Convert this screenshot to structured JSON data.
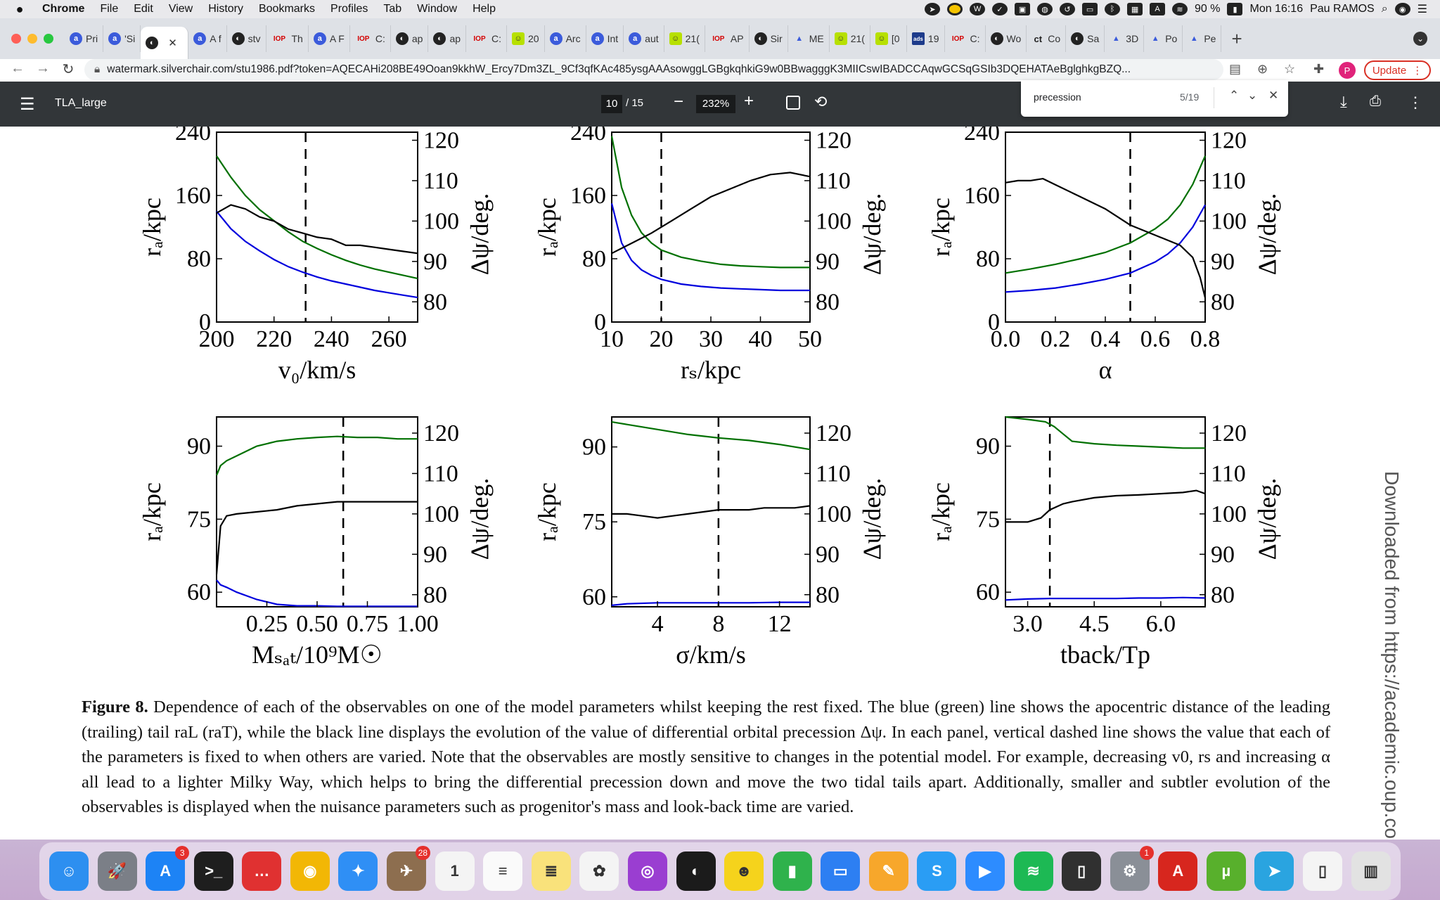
{
  "menubar": {
    "app": "Chrome",
    "items": [
      "File",
      "Edit",
      "View",
      "History",
      "Bookmarks",
      "Profiles",
      "Tab",
      "Window",
      "Help"
    ],
    "battery": "90 %",
    "clock": "Mon 16:16",
    "user": "Pau RAMOS"
  },
  "tabs": [
    {
      "label": "Pri",
      "icon": "a"
    },
    {
      "label": "'Si",
      "icon": "a"
    },
    {
      "label": "",
      "icon": "gh",
      "active": true
    },
    {
      "label": "A f",
      "icon": "a"
    },
    {
      "label": "stv",
      "icon": "gh"
    },
    {
      "label": "Th",
      "icon": "iop"
    },
    {
      "label": "A F",
      "icon": "a"
    },
    {
      "label": "C:",
      "icon": "iop"
    },
    {
      "label": "ap",
      "icon": "gh"
    },
    {
      "label": "ap",
      "icon": "gh"
    },
    {
      "label": "C:",
      "icon": "iop"
    },
    {
      "label": "20",
      "icon": "smile"
    },
    {
      "label": "Arc",
      "icon": "a"
    },
    {
      "label": "Int",
      "icon": "a"
    },
    {
      "label": "aut",
      "icon": "a"
    },
    {
      "label": "21(",
      "icon": "smile"
    },
    {
      "label": "AP",
      "icon": "iop"
    },
    {
      "label": "Sir",
      "icon": "gh"
    },
    {
      "label": "ME",
      "icon": "tri"
    },
    {
      "label": "21(",
      "icon": "smile"
    },
    {
      "label": "[0",
      "icon": "smile"
    },
    {
      "label": "19",
      "icon": "ads"
    },
    {
      "label": "C:",
      "icon": "iop"
    },
    {
      "label": "Wo",
      "icon": "gh"
    },
    {
      "label": "Co",
      "icon": "cc"
    },
    {
      "label": "Sa",
      "icon": "gh"
    },
    {
      "label": "3D",
      "icon": "tri"
    },
    {
      "label": "Po",
      "icon": "tri"
    },
    {
      "label": "Pe",
      "icon": "tri"
    }
  ],
  "address": {
    "url": "watermark.silverchair.com/stu1986.pdf?token=AQECAHi208BE49Ooan9kkhW_Ercy7Dm3ZL_9Cf3qfKAc485ysgAAAsowggLGBgkqhkiG9w0BBwagggK3MIICswIBADCCAqwGCSqGSIb3DQEHATAeBglghkgBZQ...",
    "profile_initial": "P",
    "update_label": "Update"
  },
  "pdf": {
    "title": "TLA_large",
    "page": "10",
    "total": "/ 15",
    "zoom": "232%"
  },
  "find": {
    "query": "precession",
    "count": "5/19"
  },
  "figure": {
    "ylabel_left": "rₐ/kpc",
    "ylabel_right": "Δψ/deg.",
    "panels": [
      {
        "xlabel": "v₀/km/s",
        "xticks": [
          "200",
          "220",
          "240",
          "260"
        ],
        "yticks_left": [
          "0",
          "80",
          "160",
          "240"
        ],
        "yticks_right": [
          "80",
          "90",
          "100",
          "110",
          "120"
        ]
      },
      {
        "xlabel": "rₛ/kpc",
        "xticks": [
          "10",
          "20",
          "30",
          "40",
          "50"
        ],
        "yticks_left": [
          "0",
          "80",
          "160",
          "240"
        ],
        "yticks_right": [
          "80",
          "90",
          "100",
          "110",
          "120"
        ]
      },
      {
        "xlabel": "α",
        "xticks": [
          "0.0",
          "0.2",
          "0.4",
          "0.6",
          "0.8"
        ],
        "yticks_left": [
          "0",
          "80",
          "160",
          "240"
        ],
        "yticks_right": [
          "80",
          "90",
          "100",
          "110",
          "120"
        ]
      },
      {
        "xlabel": "Mₛₐₜ/10⁹M☉",
        "xticks": [
          "0.25",
          "0.50",
          "0.75",
          "1.00"
        ],
        "yticks_left": [
          "60",
          "75",
          "90"
        ],
        "yticks_right": [
          "80",
          "90",
          "100",
          "110",
          "120"
        ]
      },
      {
        "xlabel": "σ/km/s",
        "xticks": [
          "4",
          "8",
          "12"
        ],
        "yticks_left": [
          "60",
          "75",
          "90"
        ],
        "yticks_right": [
          "80",
          "90",
          "100",
          "110",
          "120"
        ]
      },
      {
        "xlabel": "tback/Tp",
        "xticks": [
          "3.0",
          "4.5",
          "6.0"
        ],
        "yticks_left": [
          "60",
          "75",
          "90"
        ],
        "yticks_right": [
          "80",
          "90",
          "100",
          "110",
          "120"
        ]
      }
    ]
  },
  "chart_data": [
    {
      "type": "line",
      "xlim": [
        200,
        270
      ],
      "ylim": [
        0,
        240
      ],
      "y2lim": [
        75,
        122
      ],
      "dashed_x": 231,
      "series": [
        {
          "color": "#007000",
          "axis": "left",
          "x": [
            200,
            205,
            210,
            215,
            220,
            225,
            230,
            235,
            240,
            245,
            250,
            255,
            260,
            265,
            270
          ],
          "y": [
            210,
            183,
            160,
            142,
            128,
            114,
            102,
            93,
            85,
            78,
            72,
            67,
            63,
            59,
            55
          ]
        },
        {
          "color": "#0000dd",
          "axis": "left",
          "x": [
            200,
            205,
            210,
            215,
            220,
            225,
            230,
            235,
            240,
            245,
            250,
            255,
            260,
            265,
            270
          ],
          "y": [
            140,
            118,
            102,
            90,
            79,
            70,
            63,
            57,
            52,
            48,
            44,
            40,
            37,
            34,
            31
          ]
        },
        {
          "color": "#000000",
          "axis": "right",
          "x": [
            200,
            205,
            210,
            215,
            220,
            225,
            230,
            235,
            240,
            245,
            250,
            255,
            260,
            265,
            270
          ],
          "y": [
            102,
            104,
            103,
            101,
            100,
            98,
            97,
            96,
            95.5,
            94,
            94,
            93.5,
            93,
            92.5,
            92
          ]
        }
      ]
    },
    {
      "type": "line",
      "xlim": [
        10,
        50
      ],
      "ylim": [
        0,
        240
      ],
      "y2lim": [
        75,
        122
      ],
      "dashed_x": 20,
      "series": [
        {
          "color": "#007000",
          "axis": "left",
          "x": [
            10,
            12,
            14,
            16,
            18,
            20,
            24,
            28,
            32,
            36,
            40,
            44,
            48,
            50
          ],
          "y": [
            235,
            170,
            135,
            113,
            100,
            91,
            82,
            77,
            73,
            71,
            70,
            69,
            69,
            69
          ]
        },
        {
          "color": "#0000dd",
          "axis": "left",
          "x": [
            10,
            12,
            14,
            16,
            18,
            20,
            24,
            28,
            32,
            36,
            40,
            44,
            48,
            50
          ],
          "y": [
            150,
            100,
            78,
            66,
            59,
            54,
            48,
            45,
            43,
            42,
            41,
            40,
            40,
            40
          ]
        },
        {
          "color": "#000000",
          "axis": "right",
          "x": [
            10,
            14,
            18,
            22,
            26,
            30,
            34,
            38,
            42,
            46,
            50
          ],
          "y": [
            92,
            94.5,
            97,
            100,
            103,
            106,
            108,
            110,
            111.5,
            112,
            111
          ]
        }
      ]
    },
    {
      "type": "line",
      "xlim": [
        0,
        0.8
      ],
      "ylim": [
        0,
        240
      ],
      "y2lim": [
        75,
        122
      ],
      "dashed_x": 0.5,
      "series": [
        {
          "color": "#007000",
          "axis": "left",
          "x": [
            0,
            0.1,
            0.2,
            0.3,
            0.4,
            0.5,
            0.6,
            0.65,
            0.7,
            0.75,
            0.8
          ],
          "y": [
            62,
            67,
            73,
            80,
            88,
            100,
            118,
            130,
            148,
            174,
            210
          ]
        },
        {
          "color": "#0000dd",
          "axis": "left",
          "x": [
            0,
            0.1,
            0.2,
            0.3,
            0.4,
            0.5,
            0.6,
            0.65,
            0.7,
            0.75,
            0.8
          ],
          "y": [
            38,
            40,
            43,
            48,
            54,
            62,
            76,
            86,
            100,
            120,
            148
          ]
        },
        {
          "color": "#000000",
          "axis": "right",
          "x": [
            0,
            0.05,
            0.1,
            0.15,
            0.2,
            0.3,
            0.4,
            0.5,
            0.6,
            0.7,
            0.75,
            0.78,
            0.8
          ],
          "y": [
            109.5,
            110,
            110,
            110.5,
            109,
            106,
            103,
            99,
            96.5,
            94,
            91,
            86,
            81
          ]
        }
      ]
    },
    {
      "type": "line",
      "xlim": [
        0.0,
        1.0
      ],
      "ylim": [
        57,
        96
      ],
      "y2lim": [
        77,
        124
      ],
      "dashed_x": 0.63,
      "series": [
        {
          "color": "#007000",
          "axis": "left",
          "x": [
            0.0,
            0.02,
            0.05,
            0.1,
            0.2,
            0.3,
            0.4,
            0.5,
            0.6,
            0.7,
            0.8,
            0.9,
            1.0
          ],
          "y": [
            84,
            86,
            87,
            88,
            90,
            91,
            91.5,
            91.8,
            92,
            91.8,
            91.8,
            91.5,
            91.5
          ]
        },
        {
          "color": "#0000dd",
          "axis": "left",
          "x": [
            0.0,
            0.02,
            0.05,
            0.1,
            0.2,
            0.3,
            0.4,
            0.5,
            0.6,
            0.7,
            0.8,
            0.9,
            1.0
          ],
          "y": [
            62.5,
            61.5,
            61,
            60,
            58.5,
            57.5,
            57.2,
            57.2,
            57.1,
            57.1,
            57.1,
            57.1,
            57.1
          ]
        },
        {
          "color": "#000000",
          "axis": "right",
          "x": [
            0.0,
            0.02,
            0.05,
            0.1,
            0.2,
            0.3,
            0.4,
            0.5,
            0.6,
            0.7,
            0.8,
            0.9,
            1.0
          ],
          "y": [
            85,
            97,
            99.5,
            100,
            100.5,
            101,
            102,
            102.5,
            103,
            103,
            103,
            103,
            103
          ]
        }
      ]
    },
    {
      "type": "line",
      "xlim": [
        1,
        14
      ],
      "ylim": [
        58,
        96
      ],
      "y2lim": [
        77,
        124
      ],
      "dashed_x": 8,
      "series": [
        {
          "color": "#007000",
          "axis": "left",
          "x": [
            1,
            2,
            4,
            6,
            8,
            10,
            12,
            14
          ],
          "y": [
            95,
            94.5,
            93.5,
            92.5,
            91.8,
            91.3,
            90.5,
            89.5
          ]
        },
        {
          "color": "#0000dd",
          "axis": "left",
          "x": [
            1,
            2,
            4,
            6,
            8,
            10,
            12,
            14
          ],
          "y": [
            58.3,
            58.6,
            58.8,
            58.8,
            58.8,
            58.8,
            58.9,
            58.9
          ]
        },
        {
          "color": "#000000",
          "axis": "right",
          "x": [
            1,
            2,
            3,
            4,
            5,
            6,
            7,
            8,
            9,
            10,
            11,
            12,
            13,
            14
          ],
          "y": [
            100,
            100,
            99.5,
            99,
            99.5,
            100,
            100.5,
            101,
            101,
            101,
            101.5,
            101.5,
            101.5,
            102
          ]
        }
      ]
    },
    {
      "type": "line",
      "xlim": [
        2.5,
        7.0
      ],
      "ylim": [
        57,
        96
      ],
      "y2lim": [
        77,
        124
      ],
      "dashed_x": 3.5,
      "series": [
        {
          "color": "#007000",
          "axis": "left",
          "x": [
            2.5,
            3.0,
            3.4,
            3.6,
            3.8,
            4.0,
            4.5,
            5.0,
            5.5,
            6.0,
            6.5,
            7.0
          ],
          "y": [
            96,
            95.5,
            95,
            94,
            92.5,
            91,
            90.5,
            90.2,
            90,
            89.8,
            89.6,
            89.6
          ]
        },
        {
          "color": "#0000dd",
          "axis": "left",
          "x": [
            2.5,
            3.0,
            3.5,
            4.0,
            4.5,
            5.0,
            5.5,
            6.0,
            6.5,
            7.0
          ],
          "y": [
            58.4,
            58.6,
            58.7,
            58.7,
            58.7,
            58.7,
            58.8,
            58.8,
            58.9,
            58.8
          ]
        },
        {
          "color": "#000000",
          "axis": "right",
          "x": [
            2.5,
            3.0,
            3.3,
            3.5,
            3.8,
            4.0,
            4.5,
            5.0,
            5.5,
            6.0,
            6.5,
            6.8,
            7.0
          ],
          "y": [
            98,
            98,
            99,
            101,
            102.5,
            103,
            104,
            104.5,
            104.7,
            105,
            105.3,
            105.8,
            105
          ]
        }
      ]
    }
  ],
  "caption": {
    "label": "Figure 8.",
    "text": "Dependence of each of the observables on one of the model parameters whilst keeping the rest fixed. The blue (green) line shows the apocentric distance of the leading (trailing) tail raL (raT), while the black line displays the evolution of the value of differential orbital precession Δψ. In each panel, vertical dashed line shows the value that each of the parameters is fixed to when others are varied. Note that the observables are mostly sensitive to changes in the potential model. For example, decreasing v0, rs and increasing α all lead to a lighter Milky Way, which helps to bring the differential precession down and move the two tidal tails apart. Additionally, smaller and subtler evolution of the observables is displayed when the nuisance parameters such as progenitor's mass and look-back time are varied."
  },
  "watermark": "Downloaded from https://academic.oup.co",
  "dock": {
    "icons": [
      {
        "name": "finder",
        "color": "#2d8ff0",
        "glyph": "☺"
      },
      {
        "name": "launchpad",
        "color": "#7b7f87",
        "glyph": "🚀"
      },
      {
        "name": "app-store",
        "color": "#1d83f5",
        "glyph": "A",
        "badge": "3"
      },
      {
        "name": "terminal",
        "color": "#1e1e1e",
        "glyph": ">_"
      },
      {
        "name": "messages",
        "color": "#e03131",
        "glyph": "…"
      },
      {
        "name": "chrome",
        "color": "#f2b705",
        "glyph": "◉"
      },
      {
        "name": "safari",
        "color": "#2f8ff5",
        "glyph": "✦"
      },
      {
        "name": "preview",
        "color": "#8d6e4f",
        "glyph": "✈",
        "badge": "28"
      },
      {
        "name": "calendar",
        "color": "#f4f4f4",
        "glyph": "1"
      },
      {
        "name": "reminders",
        "color": "#fafafa",
        "glyph": "≡"
      },
      {
        "name": "notes",
        "color": "#f9e27b",
        "glyph": "≣"
      },
      {
        "name": "photos",
        "color": "#f4f4f4",
        "glyph": "✿"
      },
      {
        "name": "podcasts",
        "color": "#9a3ed1",
        "glyph": "◎"
      },
      {
        "name": "github",
        "color": "#1b1b1b",
        "glyph": "◐"
      },
      {
        "name": "cyberduck",
        "color": "#f5d31c",
        "glyph": "☻"
      },
      {
        "name": "numbers",
        "color": "#2fb24c",
        "glyph": "▮"
      },
      {
        "name": "keynote",
        "color": "#2d7ff2",
        "glyph": "▭"
      },
      {
        "name": "pages",
        "color": "#f7a72b",
        "glyph": "✎"
      },
      {
        "name": "skype",
        "color": "#2a9df4",
        "glyph": "S"
      },
      {
        "name": "zoom",
        "color": "#2d8cff",
        "glyph": "▶"
      },
      {
        "name": "spotify",
        "color": "#1db954",
        "glyph": "≋"
      },
      {
        "name": "remote",
        "color": "#303030",
        "glyph": "▯"
      },
      {
        "name": "system-preferences",
        "color": "#8a8f97",
        "glyph": "⚙",
        "badge": "1"
      },
      {
        "name": "acrobat",
        "color": "#d7261e",
        "glyph": "A"
      },
      {
        "name": "utorrent",
        "color": "#58b02c",
        "glyph": "µ"
      },
      {
        "name": "telegram",
        "color": "#2aa4e0",
        "glyph": "➤"
      },
      {
        "name": "file",
        "color": "#f4f4f4",
        "glyph": "▯"
      },
      {
        "name": "trash",
        "color": "#e2e2e2",
        "glyph": "▥"
      }
    ]
  }
}
